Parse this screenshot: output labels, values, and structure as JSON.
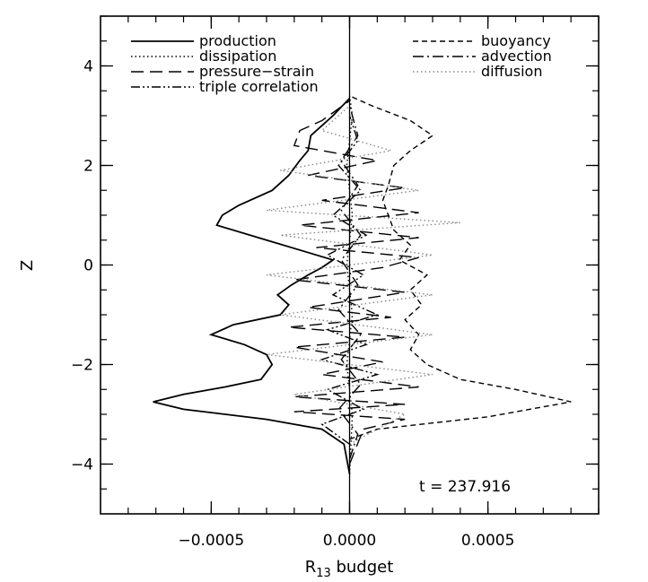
{
  "chart_data": {
    "type": "line",
    "xlabel_main": "R",
    "xlabel_sub": "13",
    "xlabel_rest": " budget",
    "ylabel": "Z",
    "annotation": "t = 237.916",
    "xlim": [
      -0.0009,
      0.0009
    ],
    "ylim": [
      -5,
      5
    ],
    "x_ticks": [
      {
        "value": -0.0005,
        "label": "−0.0005"
      },
      {
        "value": 0.0,
        "label": "0.0000"
      },
      {
        "value": 0.0005,
        "label": "0.0005"
      }
    ],
    "x_minor_step": 0.0001,
    "y_ticks": [
      {
        "value": -4,
        "label": "−4"
      },
      {
        "value": -2,
        "label": "−2"
      },
      {
        "value": 0,
        "label": "0"
      },
      {
        "value": 2,
        "label": "2"
      },
      {
        "value": 4,
        "label": "4"
      }
    ],
    "y_minor_step": 0.5,
    "legend_left": [
      "production",
      "dissipation",
      "pressure−strain",
      "triple correlation"
    ],
    "legend_right": [
      "buoyancy",
      "advection",
      "diffusion"
    ],
    "series": [
      {
        "name": "production",
        "style": "solid",
        "color": "#000000",
        "points": [
          [
            0,
            -4.2
          ],
          [
            -2e-05,
            -3.6
          ],
          [
            -0.0001,
            -3.3
          ],
          [
            -0.0003,
            -3.1
          ],
          [
            -0.0006,
            -2.9
          ],
          [
            -0.00071,
            -2.75
          ],
          [
            -0.0006,
            -2.6
          ],
          [
            -0.00045,
            -2.45
          ],
          [
            -0.00032,
            -2.3
          ],
          [
            -0.0003,
            -2.15
          ],
          [
            -0.00028,
            -2.0
          ],
          [
            -0.0003,
            -1.8
          ],
          [
            -0.00038,
            -1.6
          ],
          [
            -0.0005,
            -1.4
          ],
          [
            -0.00042,
            -1.2
          ],
          [
            -0.00025,
            -1.0
          ],
          [
            -0.00022,
            -0.8
          ],
          [
            -0.00026,
            -0.6
          ],
          [
            -0.00021,
            -0.4
          ],
          [
            -0.00015,
            -0.2
          ],
          [
            -0.0001,
            -0.05
          ],
          [
            -6e-05,
            0.1
          ],
          [
            -0.00018,
            0.3
          ],
          [
            -0.0003,
            0.5
          ],
          [
            -0.00048,
            0.8
          ],
          [
            -0.00046,
            1.0
          ],
          [
            -0.0004,
            1.2
          ],
          [
            -0.00028,
            1.5
          ],
          [
            -0.00022,
            1.8
          ],
          [
            -0.00018,
            2.1
          ],
          [
            -0.00015,
            2.3
          ],
          [
            -0.00014,
            2.6
          ],
          [
            -0.0001,
            2.8
          ],
          [
            -6e-05,
            3.0
          ],
          [
            0,
            3.35
          ]
        ]
      },
      {
        "name": "dissipation",
        "style": "dotted",
        "color": "#000000",
        "points": [
          [
            0,
            -4.2
          ],
          [
            1e-05,
            -3.0
          ],
          [
            -1e-05,
            -2.0
          ],
          [
            1e-05,
            -1.0
          ],
          [
            -1e-05,
            0.0
          ],
          [
            1e-05,
            1.0
          ],
          [
            -1e-05,
            2.0
          ],
          [
            1e-05,
            3.0
          ],
          [
            0,
            3.4
          ]
        ]
      },
      {
        "name": "pressure−strain",
        "style": "longdash",
        "color": "#000000",
        "points": [
          [
            0,
            -4.0
          ],
          [
            5e-05,
            -3.3
          ],
          [
            0.0002,
            -3.1
          ],
          [
            -0.0002,
            -2.95
          ],
          [
            0.0002,
            -2.8
          ],
          [
            -0.0002,
            -2.65
          ],
          [
            0.00025,
            -2.45
          ],
          [
            -0.0001,
            -2.2
          ],
          [
            0.00012,
            -1.95
          ],
          [
            -0.0002,
            -1.65
          ],
          [
            0.0002,
            -1.45
          ],
          [
            -0.00022,
            -1.25
          ],
          [
            0.00015,
            -1.05
          ],
          [
            -0.00015,
            -0.85
          ],
          [
            0.0002,
            -0.55
          ],
          [
            -0.0002,
            -0.3
          ],
          [
            0.00012,
            -0.05
          ],
          [
            0.00025,
            0.15
          ],
          [
            -0.00012,
            0.35
          ],
          [
            0.00025,
            0.55
          ],
          [
            -0.00018,
            0.8
          ],
          [
            0.00025,
            1.05
          ],
          [
            -0.0001,
            1.3
          ],
          [
            0.0002,
            1.55
          ],
          [
            -0.00015,
            1.8
          ],
          [
            0.0001,
            2.1
          ],
          [
            -0.0002,
            2.4
          ],
          [
            -0.00018,
            2.7
          ],
          [
            -0.0001,
            2.9
          ],
          [
            0,
            3.3
          ]
        ]
      },
      {
        "name": "triple correlation",
        "style": "dashdotdot",
        "color": "#000000",
        "points": [
          [
            0,
            -3.6
          ],
          [
            -0.0001,
            -3.2
          ],
          [
            5e-05,
            -2.9
          ],
          [
            -8e-05,
            -2.5
          ],
          [
            0.0001,
            -2.2
          ],
          [
            -0.0001,
            -1.9
          ],
          [
            6e-05,
            -1.6
          ],
          [
            -8e-05,
            -1.3
          ],
          [
            0.0001,
            -1.0
          ],
          [
            -6e-05,
            -0.6
          ],
          [
            5e-05,
            -0.2
          ],
          [
            -8e-05,
            0.2
          ],
          [
            6e-05,
            0.6
          ],
          [
            -6e-05,
            1.0
          ],
          [
            4e-05,
            1.5
          ],
          [
            -4e-05,
            2.0
          ],
          [
            3e-05,
            2.5
          ],
          [
            0,
            3.0
          ]
        ]
      },
      {
        "name": "buoyancy",
        "style": "shortdash",
        "color": "#000000",
        "points": [
          [
            0,
            -3.5
          ],
          [
            0.0001,
            -3.3
          ],
          [
            0.0005,
            -3.05
          ],
          [
            0.0008,
            -2.75
          ],
          [
            0.0006,
            -2.5
          ],
          [
            0.0004,
            -2.3
          ],
          [
            0.00028,
            -2.0
          ],
          [
            0.00022,
            -1.7
          ],
          [
            0.00025,
            -1.4
          ],
          [
            0.0002,
            -1.1
          ],
          [
            0.00026,
            -0.8
          ],
          [
            0.00022,
            -0.5
          ],
          [
            0.00028,
            -0.2
          ],
          [
            0.00018,
            0.1
          ],
          [
            0.00022,
            0.4
          ],
          [
            0.00016,
            0.7
          ],
          [
            0.00014,
            1.0
          ],
          [
            0.00012,
            1.3
          ],
          [
            0.00014,
            1.6
          ],
          [
            0.00016,
            2.0
          ],
          [
            0.00022,
            2.3
          ],
          [
            0.0003,
            2.6
          ],
          [
            0.00022,
            2.9
          ],
          [
            8e-05,
            3.2
          ],
          [
            0,
            3.4
          ]
        ]
      },
      {
        "name": "advection",
        "style": "dashdot",
        "color": "#000000",
        "points": [
          [
            0,
            -3.9
          ],
          [
            3e-05,
            -3.4
          ],
          [
            -4e-05,
            -2.9
          ],
          [
            4e-05,
            -2.4
          ],
          [
            -3e-05,
            -1.9
          ],
          [
            4e-05,
            -1.4
          ],
          [
            -4e-05,
            -0.9
          ],
          [
            3e-05,
            -0.4
          ],
          [
            -3e-05,
            0.1
          ],
          [
            4e-05,
            0.6
          ],
          [
            -3e-05,
            1.1
          ],
          [
            3e-05,
            1.6
          ],
          [
            -3e-05,
            2.1
          ],
          [
            3e-05,
            2.6
          ],
          [
            0,
            3.2
          ]
        ]
      },
      {
        "name": "diffusion",
        "style": "dotted-gray",
        "color": "#888888",
        "points": [
          [
            0,
            -3.6
          ],
          [
            0.0002,
            -3.0
          ],
          [
            -0.0002,
            -2.6
          ],
          [
            0.0003,
            -2.2
          ],
          [
            -0.0003,
            -1.8
          ],
          [
            0.0003,
            -1.4
          ],
          [
            -0.00025,
            -1.0
          ],
          [
            0.0003,
            -0.6
          ],
          [
            -0.0003,
            -0.2
          ],
          [
            0.0003,
            0.2
          ],
          [
            -0.00025,
            0.6
          ],
          [
            0.0004,
            0.85
          ],
          [
            -0.0003,
            1.1
          ],
          [
            0.00025,
            1.5
          ],
          [
            -0.00025,
            1.9
          ],
          [
            0.00015,
            2.3
          ],
          [
            -0.0001,
            2.7
          ],
          [
            0,
            3.2
          ]
        ]
      }
    ]
  }
}
